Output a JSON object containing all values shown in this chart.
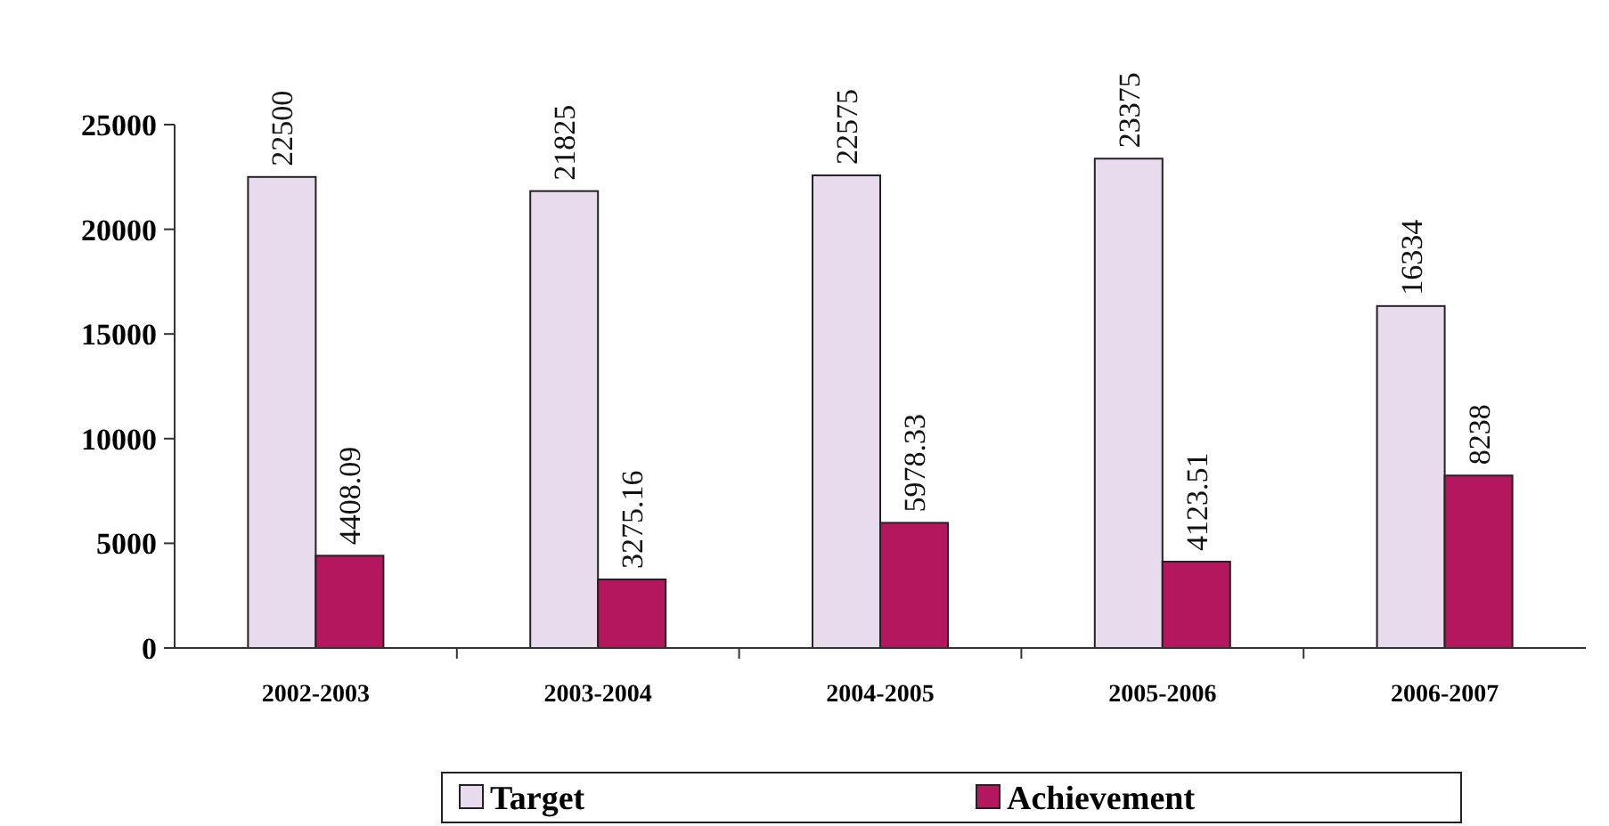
{
  "chart_data": {
    "type": "bar",
    "categories": [
      "2002-2003",
      "2003-2004",
      "2004-2005",
      "2005-2006",
      "2006-2007"
    ],
    "series": [
      {
        "name": "Target",
        "color": "#e9dbee",
        "values": [
          22500,
          21825,
          22575,
          23375,
          16334
        ]
      },
      {
        "name": "Achievement",
        "color": "#b5175e",
        "values": [
          4408.09,
          3275.16,
          5978.33,
          4123.51,
          8238
        ]
      }
    ],
    "ylim": [
      0,
      25000
    ],
    "yticks": [
      0,
      5000,
      10000,
      15000,
      20000,
      25000
    ],
    "data_labels": true,
    "legend": "bottom",
    "grid": false
  }
}
